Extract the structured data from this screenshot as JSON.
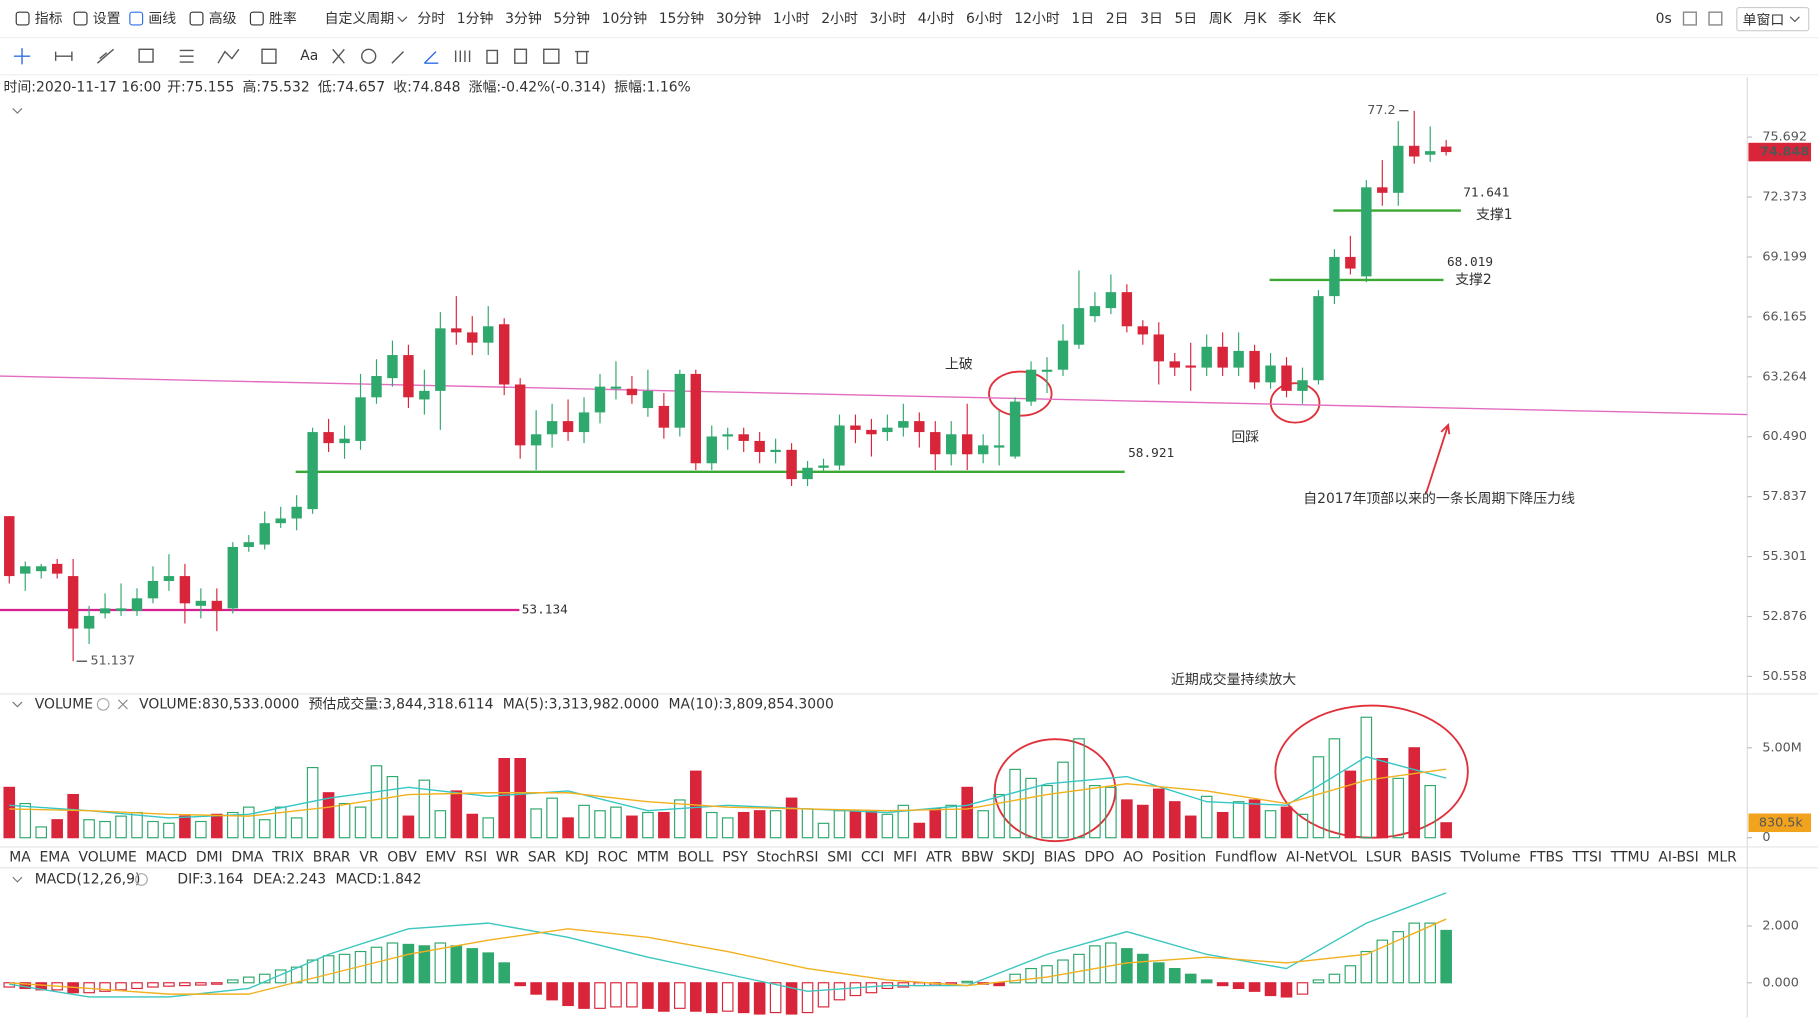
{
  "toolbar": {
    "tools": [
      "指标",
      "设置",
      "画线",
      "高级",
      "胜率"
    ],
    "active_tool": 2,
    "custom_period": "自定义周期",
    "periods": [
      "分时",
      "1分钟",
      "3分钟",
      "5分钟",
      "10分钟",
      "15分钟",
      "30分钟",
      "1小时",
      "2小时",
      "3小时",
      "4小时",
      "6小时",
      "12小时",
      "1日",
      "2日",
      "3日",
      "5日",
      "周K",
      "月K",
      "季K",
      "年K"
    ],
    "active_period": 10,
    "timer": "0s",
    "window_mode": "单窗口",
    "text_tool": "Aa"
  },
  "info_bar": {
    "time": "时间:2020-11-17 16:00",
    "fields": [
      {
        "label": "开:",
        "value": "75.155"
      },
      {
        "label": "高:",
        "value": "75.532"
      },
      {
        "label": "低:",
        "value": "74.657"
      },
      {
        "label": "收:",
        "value": "74.848"
      },
      {
        "label": "涨幅:",
        "value": "-0.42%(-0.314)"
      },
      {
        "label": "振幅:",
        "value": "1.16%"
      }
    ]
  },
  "indicator_tabs": {
    "items": [
      "MA",
      "EMA",
      "VOLUME",
      "MACD",
      "DMI",
      "DMA",
      "TRIX",
      "BRAR",
      "VR",
      "OBV",
      "EMV",
      "RSI",
      "WR",
      "SAR",
      "KDJ",
      "ROC",
      "MTM",
      "BOLL",
      "PSY",
      "StochRSI",
      "SMI",
      "CCI",
      "MFI",
      "ATR",
      "BBW",
      "SKDJ",
      "BIAS",
      "DPO",
      "AO",
      "Position",
      "Fundflow",
      "AI-NetVOL",
      "LSUR",
      "BASIS",
      "TVolume",
      "FTBS",
      "TTSI",
      "TTMU",
      "AI-BSI",
      "MLR"
    ],
    "active": 2,
    "muted": 3
  },
  "chart_data": [
    {
      "type": "candlestick",
      "log_scale": true,
      "ylim": [
        49.9,
        77.4
      ],
      "yticks": [
        75.692,
        72.373,
        69.199,
        66.165,
        63.264,
        {
          "value": 60.49,
          "label": "60.490"
        },
        57.837,
        55.301,
        52.876,
        50.558
      ],
      "up_color": "#2fa86d",
      "down_color": "#d8253a",
      "open": [
        57.0,
        54.6,
        54.7,
        55.0,
        54.5,
        52.4,
        53.0,
        53.1,
        53.1,
        53.6,
        54.3,
        54.5,
        53.3,
        53.5,
        53.2,
        55.7,
        55.8,
        56.7,
        56.9,
        57.3,
        60.7,
        60.2,
        60.3,
        62.3,
        63.2,
        64.3,
        62.2,
        62.6,
        65.6,
        65.4,
        64.9,
        65.8,
        62.9,
        60.1,
        60.6,
        61.2,
        60.7,
        61.6,
        62.7,
        62.7,
        61.8,
        61.9,
        60.9,
        63.4,
        59.3,
        60.5,
        60.6,
        60.3,
        59.8,
        59.9,
        58.6,
        59.1,
        59.2,
        61.0,
        60.8,
        60.7,
        60.9,
        61.2,
        60.7,
        59.7,
        60.6,
        59.7,
        60.0,
        59.6,
        62.1,
        63.5,
        63.6,
        64.8,
        66.2,
        66.6,
        67.4,
        65.7,
        65.3,
        64.0,
        63.8,
        63.7,
        64.7,
        63.7,
        64.5,
        63.0,
        63.8,
        62.6,
        63.1,
        67.2,
        69.2,
        68.2,
        72.9,
        72.6,
        75.2,
        74.7,
        75.155
      ],
      "high": [
        57.0,
        55.1,
        55.0,
        55.2,
        55.2,
        53.3,
        53.8,
        54.2,
        54.0,
        54.9,
        55.4,
        55.0,
        54.0,
        54.0,
        55.9,
        56.2,
        57.2,
        57.4,
        57.9,
        60.9,
        61.3,
        61.0,
        63.4,
        64.1,
        65.0,
        64.8,
        63.6,
        66.4,
        67.2,
        66.2,
        66.7,
        66.1,
        63.2,
        61.7,
        62.0,
        62.2,
        62.3,
        63.4,
        64.0,
        63.3,
        63.6,
        62.5,
        63.6,
        63.6,
        61.0,
        60.9,
        60.9,
        60.7,
        60.4,
        60.2,
        59.4,
        59.5,
        61.5,
        61.5,
        61.3,
        61.5,
        62.0,
        61.6,
        61.2,
        61.2,
        62.0,
        60.6,
        61.7,
        62.3,
        64.0,
        64.2,
        65.8,
        68.5,
        67.4,
        68.3,
        67.8,
        66.0,
        65.9,
        64.4,
        64.9,
        65.3,
        65.4,
        65.4,
        64.8,
        64.4,
        64.2,
        63.7,
        67.5,
        69.6,
        70.3,
        73.3,
        74.4,
        76.6,
        77.2,
        76.3,
        75.532
      ],
      "low": [
        54.2,
        53.9,
        54.4,
        54.4,
        51.137,
        51.8,
        52.8,
        52.9,
        52.9,
        53.4,
        53.9,
        52.6,
        52.8,
        52.3,
        53.0,
        55.5,
        55.6,
        56.5,
        56.4,
        57.1,
        59.8,
        59.5,
        59.9,
        62.0,
        62.8,
        61.8,
        61.5,
        60.8,
        64.8,
        64.3,
        64.3,
        62.4,
        59.5,
        59.0,
        60.0,
        60.3,
        60.2,
        61.1,
        62.2,
        62.0,
        61.4,
        60.4,
        60.5,
        59.0,
        59.0,
        59.9,
        59.8,
        59.3,
        59.3,
        58.3,
        58.3,
        58.9,
        59.0,
        60.2,
        59.6,
        60.3,
        60.5,
        60.0,
        59.0,
        59.2,
        59.0,
        59.3,
        59.2,
        59.5,
        61.9,
        62.5,
        63.3,
        64.6,
        65.9,
        66.3,
        65.4,
        64.8,
        62.9,
        63.3,
        62.6,
        63.3,
        63.3,
        63.3,
        62.7,
        62.7,
        62.3,
        62.0,
        62.9,
        66.8,
        68.3,
        67.9,
        71.9,
        71.9,
        74.2,
        74.3,
        74.657
      ],
      "close": [
        54.5,
        54.9,
        54.9,
        54.6,
        52.4,
        52.9,
        53.2,
        53.2,
        53.6,
        54.3,
        54.5,
        53.4,
        53.5,
        53.1,
        55.7,
        55.9,
        56.7,
        56.9,
        57.4,
        60.7,
        60.2,
        60.4,
        62.3,
        63.3,
        64.3,
        62.3,
        62.6,
        65.6,
        65.4,
        64.9,
        65.7,
        62.9,
        60.1,
        60.6,
        61.2,
        60.7,
        61.6,
        62.8,
        62.8,
        62.4,
        62.6,
        60.9,
        63.4,
        59.3,
        60.5,
        60.6,
        60.3,
        59.8,
        59.9,
        58.6,
        59.1,
        59.2,
        61.0,
        60.8,
        60.6,
        60.9,
        61.2,
        60.7,
        59.7,
        60.6,
        59.7,
        60.1,
        60.1,
        62.1,
        63.6,
        63.6,
        65.0,
        66.6,
        66.7,
        67.4,
        65.7,
        65.3,
        64.0,
        63.7,
        63.7,
        64.7,
        63.7,
        64.5,
        63.0,
        63.8,
        62.6,
        63.1,
        67.2,
        69.2,
        68.6,
        72.9,
        72.6,
        75.2,
        74.6,
        74.9,
        74.848
      ],
      "last_price": 74.848,
      "max_mark": 77.2,
      "min_mark": 51.137,
      "levels": [
        {
          "value": 53.134,
          "color": "#d6208f"
        },
        {
          "value": 58.921,
          "color": "#3aa832"
        },
        {
          "value": 68.019,
          "color": "#3aa832"
        },
        {
          "value": 71.641,
          "color": "#3aa832"
        }
      ],
      "trendline": {
        "values": [
          63.3,
          61.5
        ],
        "color": "#e36cc0"
      },
      "annotation_color": "#e0303a",
      "annotations": [
        "上破",
        "回踩",
        "支撑1",
        "支撑2",
        "自2017年顶部以来的一条长周期下降压力线",
        "近期成交量持续放大"
      ]
    },
    {
      "type": "bar",
      "title": "VOLUME",
      "legend": [
        "VOLUME:830,533.0000",
        "预估成交量:3,844,318.6114"
      ],
      "ylim": [
        0,
        6900000
      ],
      "yticks": [
        0,
        {
          "value": 5000000,
          "label": "5.00M"
        }
      ],
      "values": [
        2800000,
        1900000,
        600000,
        1000000,
        2400000,
        1000000,
        900000,
        1200000,
        1400000,
        900000,
        800000,
        1200000,
        900000,
        1300000,
        1400000,
        1700000,
        1000000,
        1700000,
        1100000,
        3900000,
        2500000,
        1900000,
        1700000,
        4000000,
        3400000,
        1200000,
        3200000,
        1500000,
        2600000,
        1300000,
        1100000,
        4400000,
        4400000,
        1600000,
        2200000,
        1100000,
        1800000,
        1500000,
        1700000,
        1200000,
        1400000,
        1400000,
        2100000,
        3700000,
        1400000,
        1100000,
        1400000,
        1500000,
        1500000,
        2200000,
        1600000,
        800000,
        1500000,
        1500000,
        1500000,
        1300000,
        1800000,
        800000,
        1600000,
        1800000,
        2800000,
        1500000,
        2400000,
        3800000,
        3300000,
        2900000,
        4200000,
        5500000,
        2900000,
        2800000,
        2100000,
        1800000,
        2700000,
        2000000,
        1200000,
        2300000,
        1400000,
        2000000,
        2100000,
        1500000,
        1700000,
        1300000,
        4500000,
        5500000,
        3700000,
        6700000,
        4400000,
        3300000,
        5000000,
        2900000,
        830533
      ],
      "last_tag": {
        "value": 830533,
        "label": "830.5k"
      },
      "lines": [
        {
          "legend": "MA(5):3,313,982.0000",
          "color": "#35c6c6",
          "x": [
            0,
            5,
            10,
            15,
            20,
            25,
            30,
            35,
            40,
            45,
            50,
            55,
            60,
            65,
            70,
            75,
            80,
            85,
            90
          ],
          "values": [
            1800000,
            1500000,
            1100000,
            1300000,
            2200000,
            2800000,
            2300000,
            2600000,
            1500000,
            1800000,
            1600000,
            1400000,
            1800000,
            3000000,
            3400000,
            2000000,
            1800000,
            4500000,
            3313982
          ]
        },
        {
          "legend": "MA(10):3,809,854.3000",
          "color": "#f2b01e",
          "x": [
            0,
            5,
            10,
            15,
            20,
            25,
            30,
            35,
            40,
            45,
            50,
            55,
            60,
            65,
            70,
            75,
            80,
            85,
            90
          ],
          "values": [
            1600000,
            1500000,
            1300000,
            1200000,
            1700000,
            2400000,
            2500000,
            2500000,
            2000000,
            1700000,
            1600000,
            1500000,
            1600000,
            2400000,
            3000000,
            2600000,
            1900000,
            3200000,
            3809854.3
          ]
        }
      ]
    },
    {
      "type": "macd",
      "title": "MACD(12,26,9)",
      "legend": {
        "text": "MACD:1.842",
        "color": "#d8253a"
      },
      "ylim": [
        -1.22,
        3.23
      ],
      "yticks": [
        {
          "value": 0,
          "label": "0.000"
        },
        {
          "value": 2,
          "label": "2.000"
        }
      ],
      "histogram": [
        -0.15,
        -0.2,
        -0.25,
        -0.25,
        -0.35,
        -0.35,
        -0.3,
        -0.25,
        -0.2,
        -0.15,
        -0.12,
        -0.1,
        -0.08,
        -0.05,
        0.1,
        0.2,
        0.3,
        0.45,
        0.55,
        0.8,
        0.95,
        1.0,
        1.1,
        1.25,
        1.4,
        1.35,
        1.3,
        1.4,
        1.3,
        1.2,
        1.05,
        0.7,
        -0.1,
        -0.4,
        -0.6,
        -0.8,
        -0.9,
        -0.9,
        -0.85,
        -0.85,
        -0.9,
        -1.0,
        -0.9,
        -1.0,
        -1.05,
        -1.0,
        -1.05,
        -1.1,
        -1.05,
        -1.1,
        -1.05,
        -0.85,
        -0.6,
        -0.45,
        -0.35,
        -0.2,
        -0.15,
        -0.1,
        -0.08,
        -0.05,
        0.05,
        -0.05,
        -0.1,
        0.3,
        0.5,
        0.6,
        0.8,
        1.0,
        1.3,
        1.4,
        1.2,
        1.0,
        0.7,
        0.5,
        0.3,
        0.1,
        -0.1,
        -0.2,
        -0.3,
        -0.45,
        -0.5,
        -0.4,
        0.1,
        0.3,
        0.6,
        1.1,
        1.5,
        1.8,
        2.1,
        2.1,
        1.842
      ],
      "lines": [
        {
          "legend": "DIF:3.164",
          "color": "#3cc6c0",
          "x": [
            0,
            5,
            10,
            15,
            20,
            25,
            30,
            35,
            40,
            45,
            50,
            55,
            60,
            65,
            70,
            75,
            80,
            85,
            90
          ],
          "values": [
            -0.05,
            -0.5,
            -0.5,
            -0.2,
            1.0,
            1.9,
            2.1,
            1.6,
            0.9,
            0.3,
            -0.3,
            -0.1,
            -0.1,
            1.0,
            1.8,
            1.0,
            0.5,
            2.1,
            3.164
          ]
        },
        {
          "legend": "DEA:2.243",
          "color": "#f2b01e",
          "x": [
            0,
            5,
            10,
            15,
            20,
            25,
            30,
            35,
            40,
            45,
            50,
            55,
            60,
            65,
            70,
            75,
            80,
            85,
            90
          ],
          "values": [
            0.0,
            -0.2,
            -0.4,
            -0.4,
            0.3,
            1.0,
            1.5,
            1.9,
            1.6,
            1.1,
            0.5,
            0.1,
            -0.1,
            0.2,
            0.7,
            0.9,
            0.7,
            1.0,
            2.243
          ]
        }
      ]
    }
  ]
}
